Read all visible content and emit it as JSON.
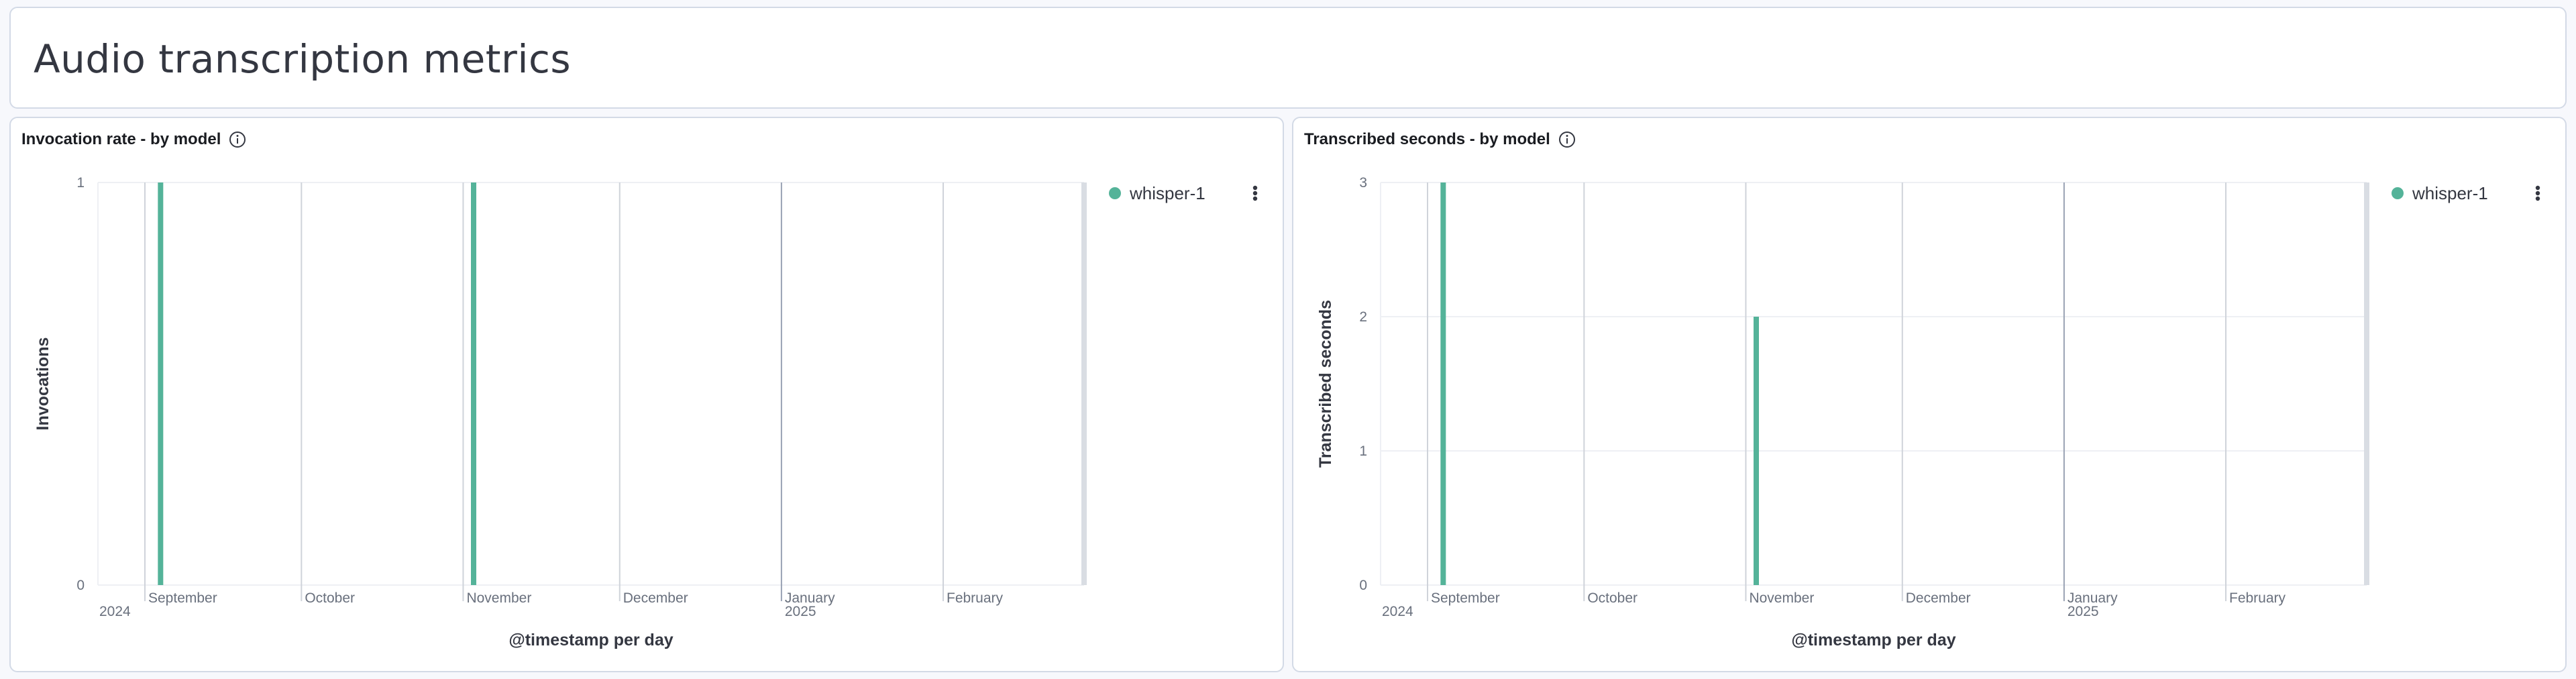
{
  "page": {
    "title": "Audio transcription metrics"
  },
  "panels": [
    {
      "title": "Invocation rate - by model",
      "info_icon": "info-icon",
      "legend": {
        "label": "whisper-1",
        "color": "#54b399",
        "menu_icon": "dots-vertical-icon"
      },
      "x_axis_title": "@timestamp per day",
      "y_axis_title": "Invocations",
      "x_labels": [
        {
          "text": "September",
          "sub": "2024"
        },
        {
          "text": "October",
          "sub": ""
        },
        {
          "text": "November",
          "sub": ""
        },
        {
          "text": "December",
          "sub": ""
        },
        {
          "text": "January",
          "sub": "2025"
        },
        {
          "text": "February",
          "sub": ""
        }
      ],
      "y_ticks": [
        "0",
        "1"
      ]
    },
    {
      "title": "Transcribed seconds - by model",
      "info_icon": "info-icon",
      "legend": {
        "label": "whisper-1",
        "color": "#54b399",
        "menu_icon": "dots-vertical-icon"
      },
      "x_axis_title": "@timestamp per day",
      "y_axis_title": "Transcribed seconds",
      "x_labels": [
        {
          "text": "September",
          "sub": "2024"
        },
        {
          "text": "October",
          "sub": ""
        },
        {
          "text": "November",
          "sub": ""
        },
        {
          "text": "December",
          "sub": ""
        },
        {
          "text": "January",
          "sub": "2025"
        },
        {
          "text": "February",
          "sub": ""
        }
      ],
      "y_ticks": [
        "0",
        "1",
        "2",
        "3"
      ]
    }
  ],
  "chart_data": [
    {
      "type": "bar",
      "title": "Invocation rate - by model",
      "xlabel": "@timestamp per day",
      "ylabel": "Invocations",
      "x_range": [
        "2024-08-23",
        "2025-02-28"
      ],
      "ylim": [
        0,
        1
      ],
      "grid": true,
      "legend_position": "top-right",
      "series": [
        {
          "name": "whisper-1",
          "color": "#54b399",
          "points": [
            {
              "x": "2024-09-04",
              "y": 1
            },
            {
              "x": "2024-11-03",
              "y": 1
            }
          ]
        }
      ]
    },
    {
      "type": "bar",
      "title": "Transcribed seconds - by model",
      "xlabel": "@timestamp per day",
      "ylabel": "Transcribed seconds",
      "x_range": [
        "2024-08-23",
        "2025-02-28"
      ],
      "ylim": [
        0,
        3
      ],
      "grid": true,
      "legend_position": "top-right",
      "series": [
        {
          "name": "whisper-1",
          "color": "#54b399",
          "points": [
            {
              "x": "2024-09-04",
              "y": 3
            },
            {
              "x": "2024-11-03",
              "y": 2
            }
          ]
        }
      ]
    }
  ]
}
